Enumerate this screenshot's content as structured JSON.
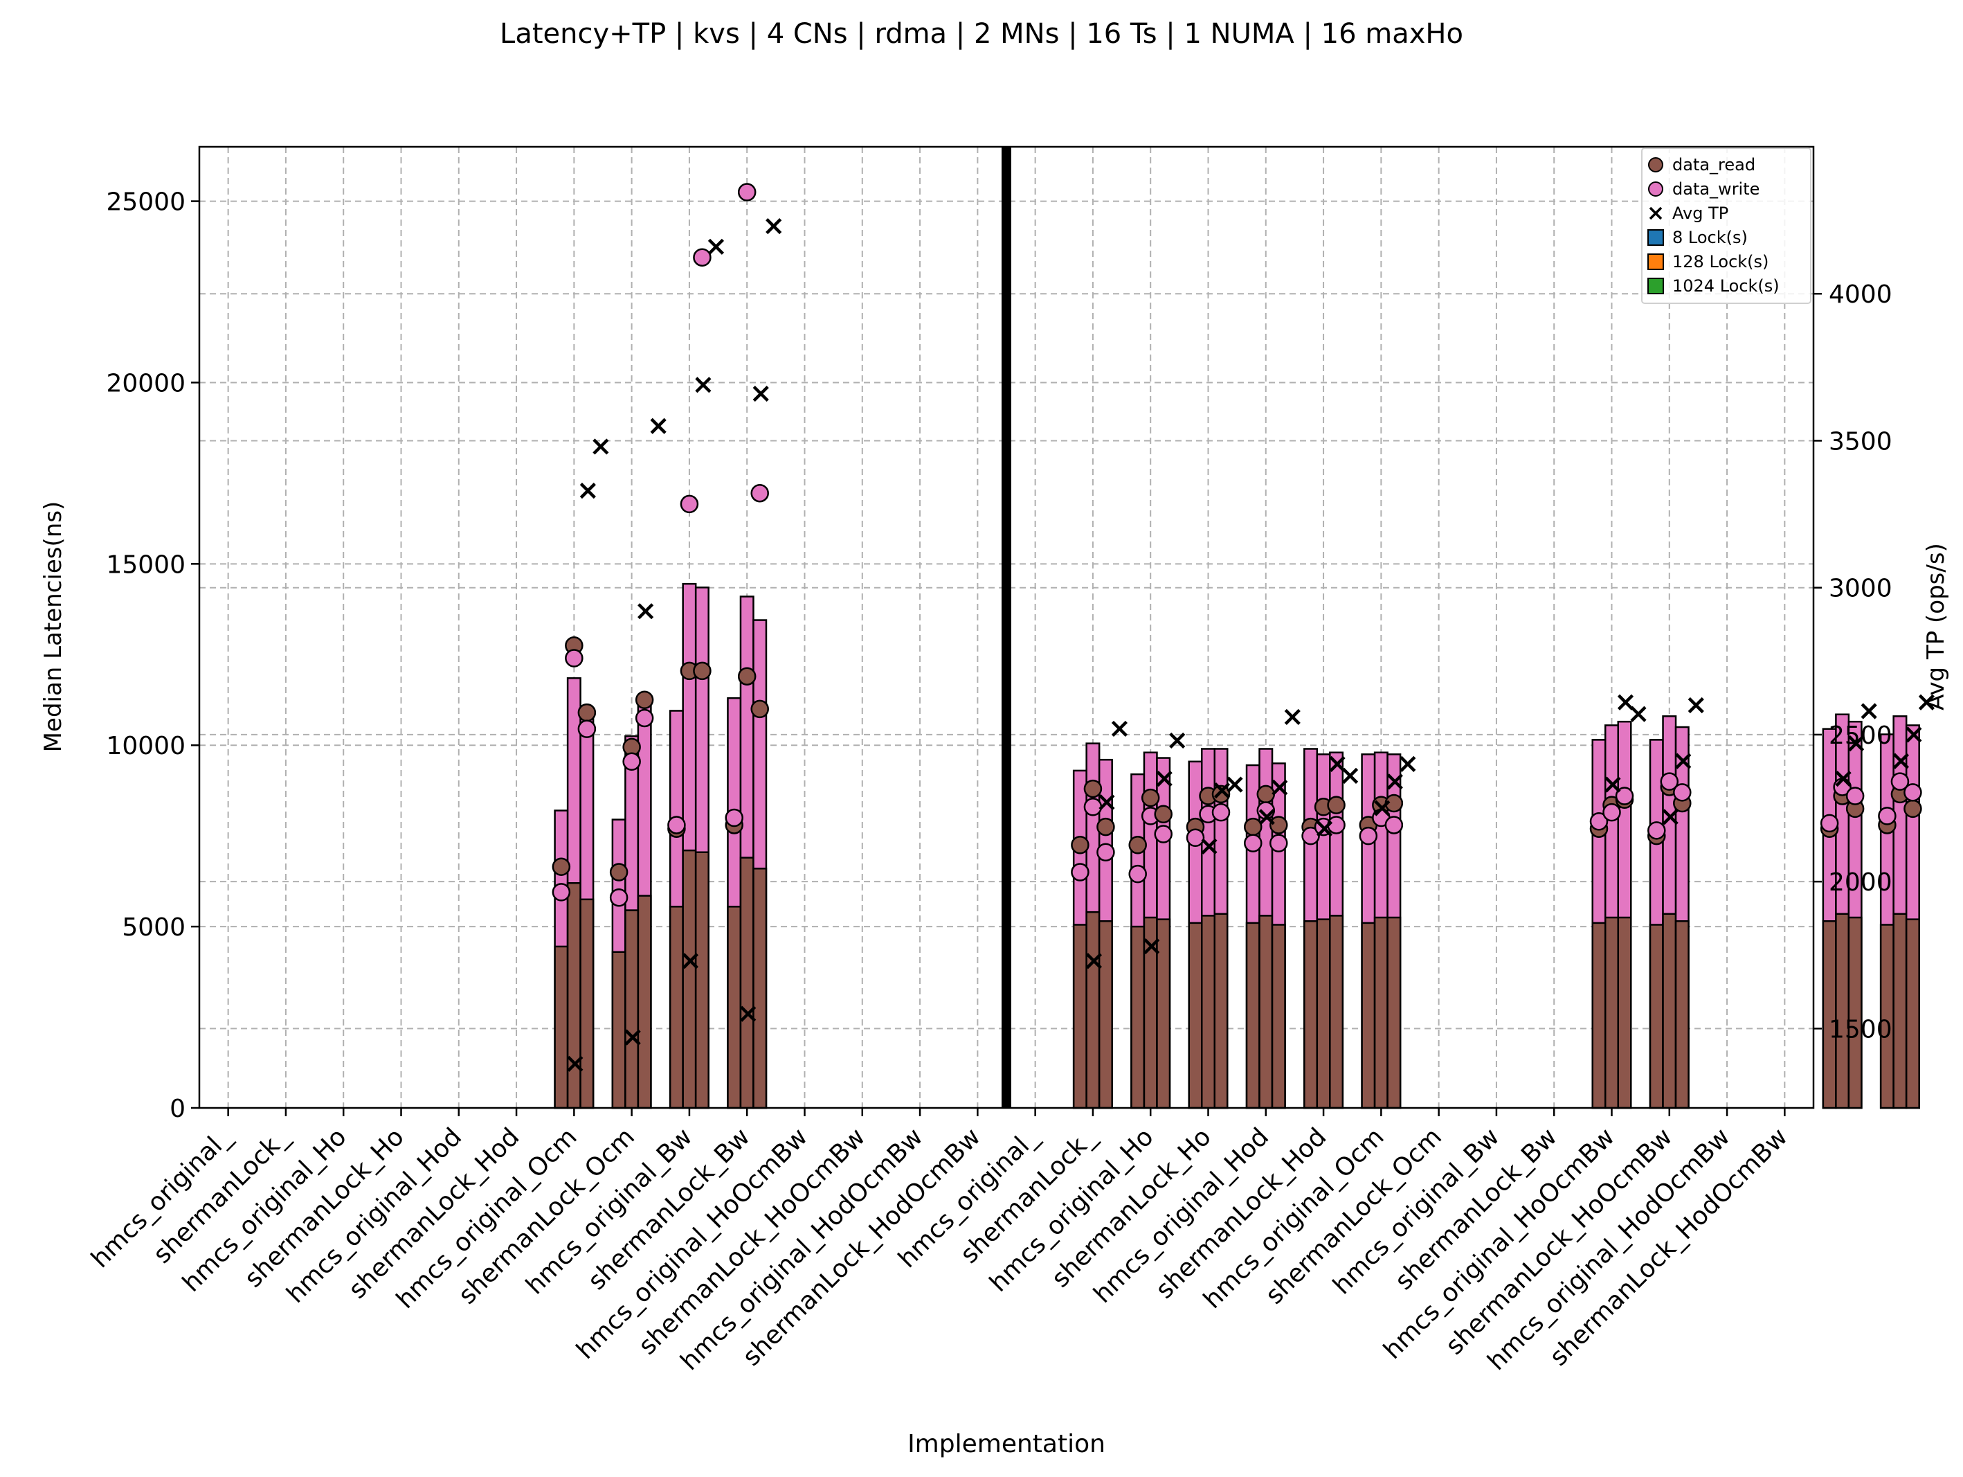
{
  "chart_data": {
    "type": "bar",
    "title": "Latency+TP | kvs | 4 CNs | rdma | 2 MNs | 16 Ts | 1 NUMA | 16 maxHo",
    "xlabel": "Implementation",
    "ylabel": "Median Latencies(ns)",
    "ylabel_right": "Avg TP (ops/s)",
    "ylim": [
      0,
      26500
    ],
    "ylim_right": [
      1230,
      4500
    ],
    "yticks": [
      0,
      5000,
      10000,
      15000,
      20000,
      25000
    ],
    "yticks_right": [
      1500,
      2000,
      2500,
      3000,
      3500,
      4000
    ],
    "grid": true,
    "legend_position": "top-right",
    "colors": {
      "data_read": "#8c564b",
      "data_write": "#e377c2",
      "lock_8": "#1f77b4",
      "lock_128": "#ff7f0e",
      "lock_1024": "#2ca02c"
    },
    "legend": [
      {
        "label": "data_read",
        "kind": "circle",
        "color": "#8c564b"
      },
      {
        "label": "data_write",
        "kind": "circle",
        "color": "#e377c2"
      },
      {
        "label": "Avg TP",
        "kind": "x",
        "color": "#000000"
      },
      {
        "label": "8 Lock(s)",
        "kind": "square",
        "color": "#1f77b4"
      },
      {
        "label": "128 Lock(s)",
        "kind": "square",
        "color": "#ff7f0e"
      },
      {
        "label": "1024 Lock(s)",
        "kind": "square",
        "color": "#2ca02c"
      }
    ],
    "categories": [
      "hmcs_original_",
      "shermanLock_",
      "hmcs_original_Ho",
      "shermanLock_Ho",
      "hmcs_original_Hod",
      "shermanLock_Hod",
      "hmcs_original_Ocm",
      "shermanLock_Ocm",
      "hmcs_original_Bw",
      "shermanLock_Bw",
      "hmcs_original_HoOcmBw",
      "shermanLock_HoOcmBw",
      "hmcs_original_HodOcmBw",
      "shermanLock_HodOcmBw",
      "hmcs_original_",
      "shermanLock_",
      "hmcs_original_Ho",
      "shermanLock_Ho",
      "hmcs_original_Hod",
      "shermanLock_Hod",
      "hmcs_original_Ocm",
      "shermanLock_Ocm",
      "hmcs_original_Bw",
      "shermanLock_Bw",
      "hmcs_original_HoOcmBw",
      "shermanLock_HoOcmBw",
      "hmcs_original_HodOcmBw",
      "shermanLock_HodOcmBw"
    ],
    "bars": [
      {
        "cat": 6,
        "lock": 8,
        "read": 4450,
        "write": 8200,
        "read_pt": 6650,
        "write_pt": 5950,
        "tp": 1380
      },
      {
        "cat": 6,
        "lock": 128,
        "read": 6200,
        "write": 11850,
        "read_pt": 12750,
        "write_pt": 12400,
        "tp": 3330
      },
      {
        "cat": 6,
        "lock": 1024,
        "read": 5750,
        "write": 10900,
        "read_pt": 10900,
        "write_pt": 10450,
        "tp": 3480
      },
      {
        "cat": 7,
        "lock": 8,
        "read": 4300,
        "write": 7950,
        "read_pt": 6500,
        "write_pt": 5800,
        "tp": 1470
      },
      {
        "cat": 7,
        "lock": 128,
        "read": 5450,
        "write": 10250,
        "read_pt": 9950,
        "write_pt": 9550,
        "tp": 2920
      },
      {
        "cat": 7,
        "lock": 1024,
        "read": 5850,
        "write": 11150,
        "read_pt": 11250,
        "write_pt": 10750,
        "tp": 3550
      },
      {
        "cat": 8,
        "lock": 8,
        "read": 5550,
        "write": 10950,
        "read_pt": 7700,
        "write_pt": 7800,
        "tp": 1730
      },
      {
        "cat": 8,
        "lock": 128,
        "read": 7100,
        "write": 14450,
        "read_pt": 12050,
        "write_pt": 16650,
        "tp": 3690
      },
      {
        "cat": 8,
        "lock": 1024,
        "read": 7050,
        "write": 14350,
        "read_pt": 12050,
        "write_pt": 23450,
        "tp": 4160
      },
      {
        "cat": 9,
        "lock": 8,
        "read": 5550,
        "write": 11300,
        "read_pt": 7800,
        "write_pt": 8000,
        "tp": 1550
      },
      {
        "cat": 9,
        "lock": 128,
        "read": 6900,
        "write": 14100,
        "read_pt": 11900,
        "write_pt": 25250,
        "tp": 3660
      },
      {
        "cat": 9,
        "lock": 1024,
        "read": 6600,
        "write": 13450,
        "read_pt": 11000,
        "write_pt": 16950,
        "tp": 4230
      },
      {
        "cat": 15,
        "lock": 8,
        "read": 5050,
        "write": 9300,
        "read_pt": 7250,
        "write_pt": 6500,
        "tp": 1730
      },
      {
        "cat": 15,
        "lock": 128,
        "read": 5400,
        "write": 10050,
        "read_pt": 8800,
        "write_pt": 8300,
        "tp": 2270
      },
      {
        "cat": 15,
        "lock": 1024,
        "read": 5150,
        "write": 9600,
        "read_pt": 7750,
        "write_pt": 7050,
        "tp": 2520
      },
      {
        "cat": 16,
        "lock": 8,
        "read": 5000,
        "write": 9200,
        "read_pt": 7250,
        "write_pt": 6450,
        "tp": 1780
      },
      {
        "cat": 16,
        "lock": 128,
        "read": 5250,
        "write": 9800,
        "read_pt": 8550,
        "write_pt": 8050,
        "tp": 2350
      },
      {
        "cat": 16,
        "lock": 1024,
        "read": 5200,
        "write": 9650,
        "read_pt": 8100,
        "write_pt": 7550,
        "tp": 2480
      },
      {
        "cat": 17,
        "lock": 8,
        "read": 5100,
        "write": 9550,
        "read_pt": 7750,
        "write_pt": 7450,
        "tp": 2120
      },
      {
        "cat": 17,
        "lock": 128,
        "read": 5300,
        "write": 9900,
        "read_pt": 8600,
        "write_pt": 8100,
        "tp": 2310
      },
      {
        "cat": 17,
        "lock": 1024,
        "read": 5350,
        "write": 9900,
        "read_pt": 8650,
        "write_pt": 8150,
        "tp": 2330
      },
      {
        "cat": 18,
        "lock": 8,
        "read": 5100,
        "write": 9450,
        "read_pt": 7750,
        "write_pt": 7300,
        "tp": 2220
      },
      {
        "cat": 18,
        "lock": 128,
        "read": 5300,
        "write": 9900,
        "read_pt": 8650,
        "write_pt": 8200,
        "tp": 2320
      },
      {
        "cat": 18,
        "lock": 1024,
        "read": 5050,
        "write": 9500,
        "read_pt": 7800,
        "write_pt": 7300,
        "tp": 2560
      },
      {
        "cat": 19,
        "lock": 8,
        "read": 5150,
        "write": 9900,
        "read_pt": 7750,
        "write_pt": 7500,
        "tp": 2180
      },
      {
        "cat": 19,
        "lock": 128,
        "read": 5200,
        "write": 9750,
        "read_pt": 8300,
        "write_pt": 7750,
        "tp": 2400
      },
      {
        "cat": 19,
        "lock": 1024,
        "read": 5300,
        "write": 9800,
        "read_pt": 8350,
        "write_pt": 7800,
        "tp": 2360
      },
      {
        "cat": 20,
        "lock": 8,
        "read": 5100,
        "write": 9750,
        "read_pt": 7800,
        "write_pt": 7500,
        "tp": 2250
      },
      {
        "cat": 20,
        "lock": 128,
        "read": 5250,
        "write": 9800,
        "read_pt": 8350,
        "write_pt": 8000,
        "tp": 2340
      },
      {
        "cat": 20,
        "lock": 1024,
        "read": 5250,
        "write": 9750,
        "read_pt": 8400,
        "write_pt": 7800,
        "tp": 2400
      },
      {
        "cat": 24,
        "lock": 8,
        "read": 5100,
        "write": 10150,
        "read_pt": 7700,
        "write_pt": 7900,
        "tp": 2330
      },
      {
        "cat": 24,
        "lock": 128,
        "read": 5250,
        "write": 10550,
        "read_pt": 8350,
        "write_pt": 8150,
        "tp": 2610
      },
      {
        "cat": 24,
        "lock": 1024,
        "read": 5250,
        "write": 10650,
        "read_pt": 8500,
        "write_pt": 8600,
        "tp": 2570
      },
      {
        "cat": 25,
        "lock": 8,
        "read": 5050,
        "write": 10150,
        "read_pt": 7500,
        "write_pt": 7650,
        "tp": 2220
      },
      {
        "cat": 25,
        "lock": 128,
        "read": 5350,
        "write": 10800,
        "read_pt": 8850,
        "write_pt": 9000,
        "tp": 2410
      },
      {
        "cat": 25,
        "lock": 1024,
        "read": 5150,
        "write": 10500,
        "read_pt": 8400,
        "write_pt": 8700,
        "tp": 2600
      },
      {
        "cat": 28,
        "lock": 8,
        "read": 5150,
        "write": 10450,
        "read_pt": 7700,
        "write_pt": 7850,
        "tp": 2350
      },
      {
        "cat": 28,
        "lock": 128,
        "read": 5350,
        "write": 10850,
        "read_pt": 8600,
        "write_pt": 8850,
        "tp": 2470
      },
      {
        "cat": 28,
        "lock": 1024,
        "read": 5250,
        "write": 10650,
        "read_pt": 8250,
        "write_pt": 8600,
        "tp": 2580
      },
      {
        "cat": 29,
        "lock": 8,
        "read": 5050,
        "write": 10300,
        "read_pt": 7800,
        "write_pt": 8050,
        "tp": 2410
      },
      {
        "cat": 29,
        "lock": 128,
        "read": 5350,
        "write": 10800,
        "read_pt": 8650,
        "write_pt": 9000,
        "tp": 2500
      },
      {
        "cat": 29,
        "lock": 1024,
        "read": 5200,
        "write": 10550,
        "read_pt": 8250,
        "write_pt": 8700,
        "tp": 2610
      }
    ]
  }
}
